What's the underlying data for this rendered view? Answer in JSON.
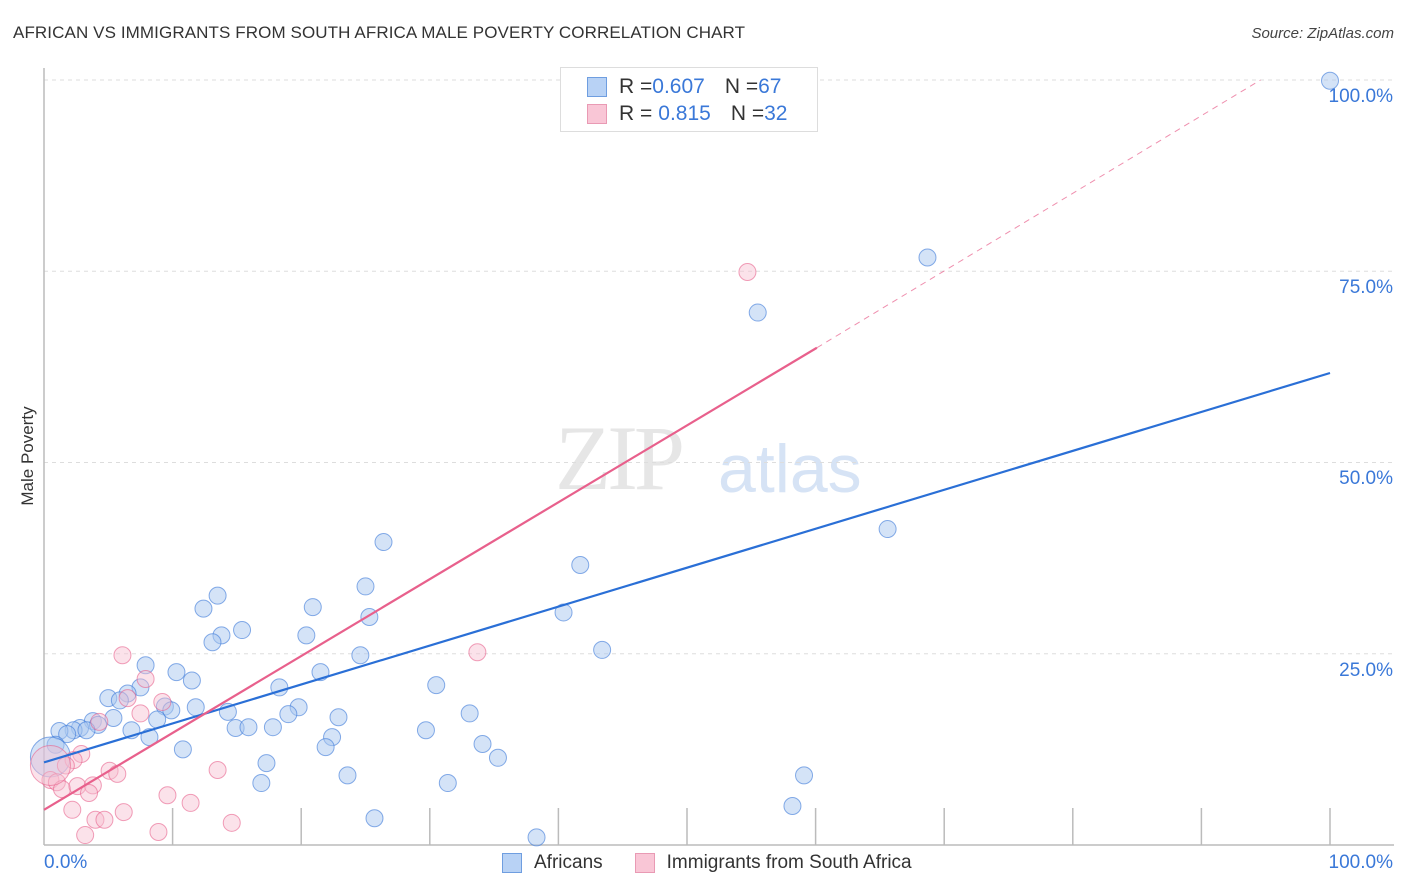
{
  "title": "AFRICAN VS IMMIGRANTS FROM SOUTH AFRICA MALE POVERTY CORRELATION CHART",
  "source": "Source: ZipAtlas.com",
  "watermark": {
    "zip": "ZIP",
    "atlas": "atlas"
  },
  "legend": {
    "rows": [
      {
        "r_label": "R = ",
        "r_value": "0.607",
        "n_label": "N = ",
        "n_value": "67"
      },
      {
        "r_label": "R = ",
        "r_value": "0.815",
        "n_label": "N = ",
        "n_value": "32"
      }
    ]
  },
  "chart_data": {
    "type": "scatter",
    "title": "AFRICAN VS IMMIGRANTS FROM SOUTH AFRICA MALE POVERTY CORRELATION CHART",
    "xlabel": "",
    "ylabel": "Male Poverty",
    "xlim": [
      0,
      100
    ],
    "ylim": [
      0,
      100
    ],
    "x_tick_labels": [
      "0.0%",
      "100.0%"
    ],
    "y_tick_labels": [
      {
        "v": 100,
        "label": "100.0%"
      },
      {
        "v": 75,
        "label": "75.0%"
      },
      {
        "v": 50,
        "label": "50.0%"
      },
      {
        "v": 25,
        "label": "25.0%"
      }
    ],
    "grid": true,
    "legend_position": "bottom",
    "series": [
      {
        "name": "Africans",
        "color": "#3a78d8",
        "fill": "#aac8f0",
        "r": 0.607,
        "n": 67,
        "trend": {
          "x0": 0,
          "y0": 10.8,
          "x1": 100,
          "y1": 61.7
        },
        "points": [
          [
            100,
            99.9
          ],
          [
            68.7,
            76.8
          ],
          [
            55.5,
            69.6
          ],
          [
            65.6,
            41.3
          ],
          [
            41.7,
            36.6
          ],
          [
            40.4,
            30.4
          ],
          [
            43.4,
            25.5
          ],
          [
            26.4,
            39.6
          ],
          [
            25.0,
            33.8
          ],
          [
            25.3,
            29.8
          ],
          [
            24.6,
            24.8
          ],
          [
            20.9,
            31.1
          ],
          [
            20.4,
            27.4
          ],
          [
            21.5,
            22.6
          ],
          [
            18.3,
            20.6
          ],
          [
            19.8,
            18.0
          ],
          [
            19.0,
            17.1
          ],
          [
            22.9,
            16.7
          ],
          [
            22.4,
            14.1
          ],
          [
            21.9,
            12.8
          ],
          [
            23.6,
            9.1
          ],
          [
            25.7,
            3.5
          ],
          [
            30.5,
            20.9
          ],
          [
            29.7,
            15.0
          ],
          [
            33.1,
            17.2
          ],
          [
            34.1,
            13.2
          ],
          [
            35.3,
            11.4
          ],
          [
            31.4,
            8.1
          ],
          [
            38.3,
            1.0
          ],
          [
            59.1,
            9.1
          ],
          [
            58.2,
            5.1
          ],
          [
            13.5,
            32.6
          ],
          [
            12.4,
            30.9
          ],
          [
            15.4,
            28.1
          ],
          [
            13.8,
            27.4
          ],
          [
            13.1,
            26.5
          ],
          [
            7.9,
            23.5
          ],
          [
            10.3,
            22.6
          ],
          [
            11.5,
            21.5
          ],
          [
            7.5,
            20.6
          ],
          [
            6.5,
            19.8
          ],
          [
            5.0,
            19.2
          ],
          [
            5.9,
            18.9
          ],
          [
            9.4,
            18.1
          ],
          [
            9.9,
            17.6
          ],
          [
            11.8,
            18.0
          ],
          [
            14.3,
            17.4
          ],
          [
            8.8,
            16.4
          ],
          [
            5.4,
            16.6
          ],
          [
            3.8,
            16.2
          ],
          [
            4.2,
            15.7
          ],
          [
            14.9,
            15.3
          ],
          [
            15.9,
            15.4
          ],
          [
            17.8,
            15.4
          ],
          [
            6.8,
            15.0
          ],
          [
            2.8,
            15.3
          ],
          [
            2.3,
            15.0
          ],
          [
            3.3,
            15.0
          ],
          [
            1.2,
            14.9
          ],
          [
            1.8,
            14.5
          ],
          [
            8.2,
            14.1
          ],
          [
            10.8,
            12.5
          ],
          [
            17.3,
            10.7
          ],
          [
            16.9,
            8.1
          ],
          [
            0.9,
            13.1
          ],
          [
            0.5,
            11.5,
            "large"
          ]
        ]
      },
      {
        "name": "Immigrants from South Africa",
        "color": "#e8608c",
        "fill": "#f7bfd0",
        "r": 0.815,
        "n": 32,
        "trend": {
          "x0": 0,
          "y0": 4.6,
          "x1": 60.1,
          "y1": 65.0,
          "dash_x1": 94.6,
          "dash_y1": 100
        },
        "points": [
          [
            54.7,
            74.9
          ],
          [
            33.7,
            25.2
          ],
          [
            6.1,
            24.8
          ],
          [
            7.9,
            21.7
          ],
          [
            9.2,
            18.7
          ],
          [
            6.5,
            19.2
          ],
          [
            7.5,
            17.2
          ],
          [
            4.3,
            16.1
          ],
          [
            2.9,
            11.9
          ],
          [
            2.3,
            11.1
          ],
          [
            1.7,
            10.4
          ],
          [
            5.1,
            9.7
          ],
          [
            5.7,
            9.3
          ],
          [
            13.5,
            9.8
          ],
          [
            0.5,
            8.5
          ],
          [
            1.0,
            8.2
          ],
          [
            1.4,
            7.3
          ],
          [
            2.6,
            7.7
          ],
          [
            3.8,
            7.8
          ],
          [
            3.5,
            6.8
          ],
          [
            9.6,
            6.5
          ],
          [
            11.4,
            5.5
          ],
          [
            2.2,
            4.6
          ],
          [
            6.2,
            4.3
          ],
          [
            4.0,
            3.3
          ],
          [
            4.7,
            3.3
          ],
          [
            14.6,
            2.9
          ],
          [
            8.9,
            1.7
          ],
          [
            3.2,
            1.3
          ],
          [
            0.5,
            10.4,
            "large"
          ]
        ]
      }
    ]
  }
}
